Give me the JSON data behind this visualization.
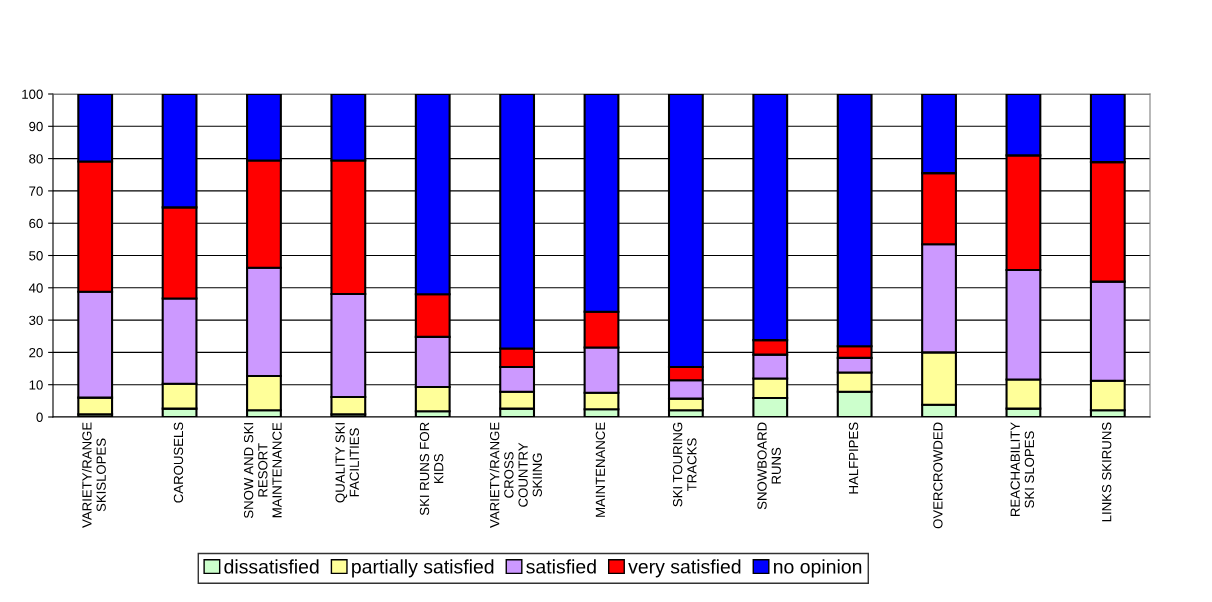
{
  "chart_data": {
    "type": "bar",
    "stacked": true,
    "categories": [
      "VARIETY/RANGE\nSKISLOPES",
      "CAROUSELS",
      "SNOW AND SKI\nRESORT\nMAINTENANCE",
      "QUALITY SKI\nFACILITIES",
      "SKI RUNS FOR\nKIDS",
      "VARIETY/RANGE\nCROSS\nCOUNTRY\nSKIING",
      "MAINTENANCE",
      "SKI TOURING\nTRACKS",
      "SNOWBOARD\nRUNS",
      "HALFPIPES",
      "OVERCROWDED",
      "REACHABILITY\nSKI SLOPES",
      "LINKS SKIRUNS"
    ],
    "series": [
      {
        "name": "dissatisfied",
        "color": "#ccffcc",
        "values": [
          0.8,
          2.6,
          2.1,
          0.8,
          1.8,
          2.6,
          2.4,
          2.1,
          5.9,
          7.8,
          3.8,
          2.6,
          2.1
        ]
      },
      {
        "name": "partially satisfied",
        "color": "#ffff99",
        "values": [
          5.2,
          7.7,
          10.6,
          5.4,
          7.5,
          5.2,
          5.1,
          3.6,
          6.0,
          6.0,
          16.2,
          9.0,
          9.1
        ]
      },
      {
        "name": "satisfied",
        "color": "#cc99ff",
        "values": [
          32.8,
          26.4,
          33.5,
          31.9,
          15.5,
          7.7,
          14.0,
          5.7,
          7.4,
          4.5,
          33.5,
          33.9,
          30.7
        ]
      },
      {
        "name": "very satisfied",
        "color": "#ff0000",
        "values": [
          40.3,
          28.2,
          33.2,
          41.3,
          13.2,
          5.7,
          11.1,
          4.1,
          4.5,
          3.6,
          22.0,
          35.5,
          37.0
        ]
      },
      {
        "name": "no opinion",
        "color": "#0000ff",
        "values": [
          20.9,
          35.1,
          20.6,
          20.6,
          62.0,
          78.8,
          67.4,
          84.5,
          76.2,
          78.1,
          24.5,
          19.0,
          21.1
        ]
      }
    ],
    "ylim": [
      0,
      100
    ],
    "yticks": [
      0,
      10,
      20,
      30,
      40,
      50,
      60,
      70,
      80,
      90,
      100
    ],
    "grid": "y",
    "legend": "bottom"
  }
}
